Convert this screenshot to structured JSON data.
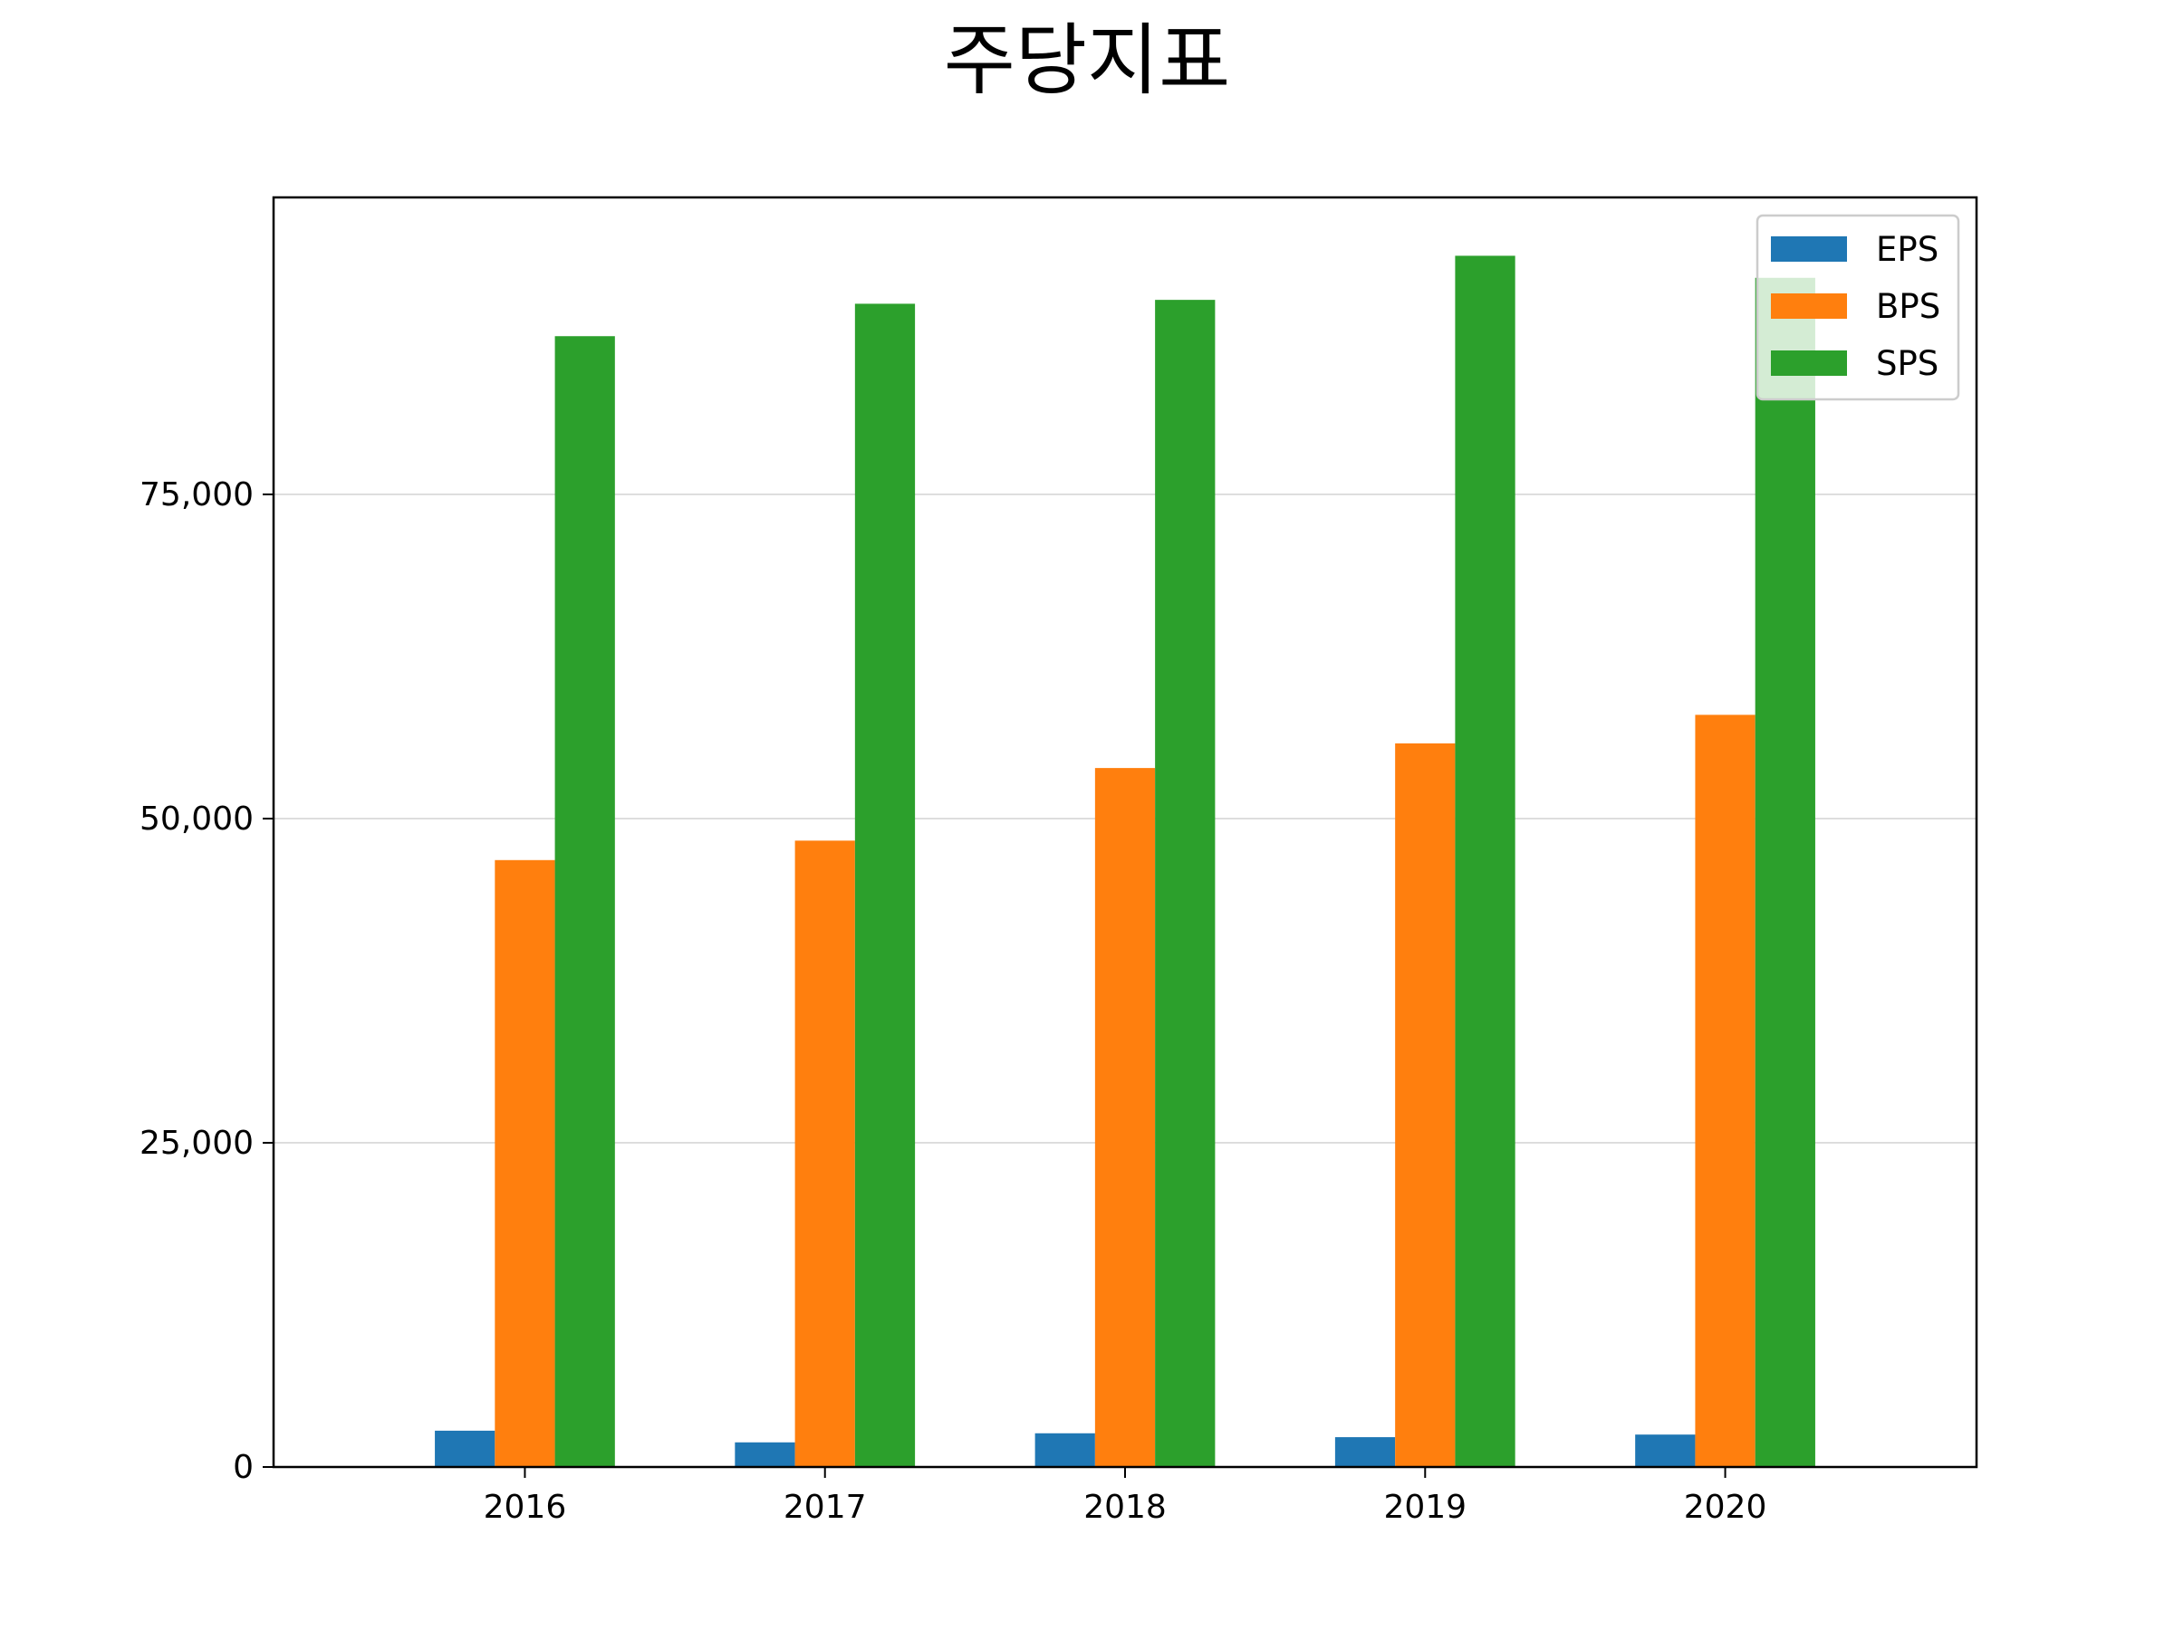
{
  "chart_data": {
    "type": "bar",
    "title": "주당지표",
    "xlabel": "",
    "ylabel": "",
    "categories": [
      "2016",
      "2017",
      "2018",
      "2019",
      "2020"
    ],
    "series": [
      {
        "name": "EPS",
        "color": "#1f77b4",
        "values": [
          2800,
          1900,
          2600,
          2300,
          2500
        ]
      },
      {
        "name": "BPS",
        "color": "#ff7f0e",
        "values": [
          46800,
          48300,
          53900,
          55800,
          58000
        ]
      },
      {
        "name": "SPS",
        "color": "#2ca02c",
        "values": [
          87200,
          89700,
          90000,
          93400,
          91700
        ]
      }
    ],
    "ylim": [
      0,
      97900
    ],
    "yticks": [
      0,
      25000,
      50000,
      75000
    ],
    "ytick_labels": [
      "0",
      "25,000",
      "50,000",
      "75,000"
    ],
    "grid": "y",
    "legend": "top-right"
  }
}
